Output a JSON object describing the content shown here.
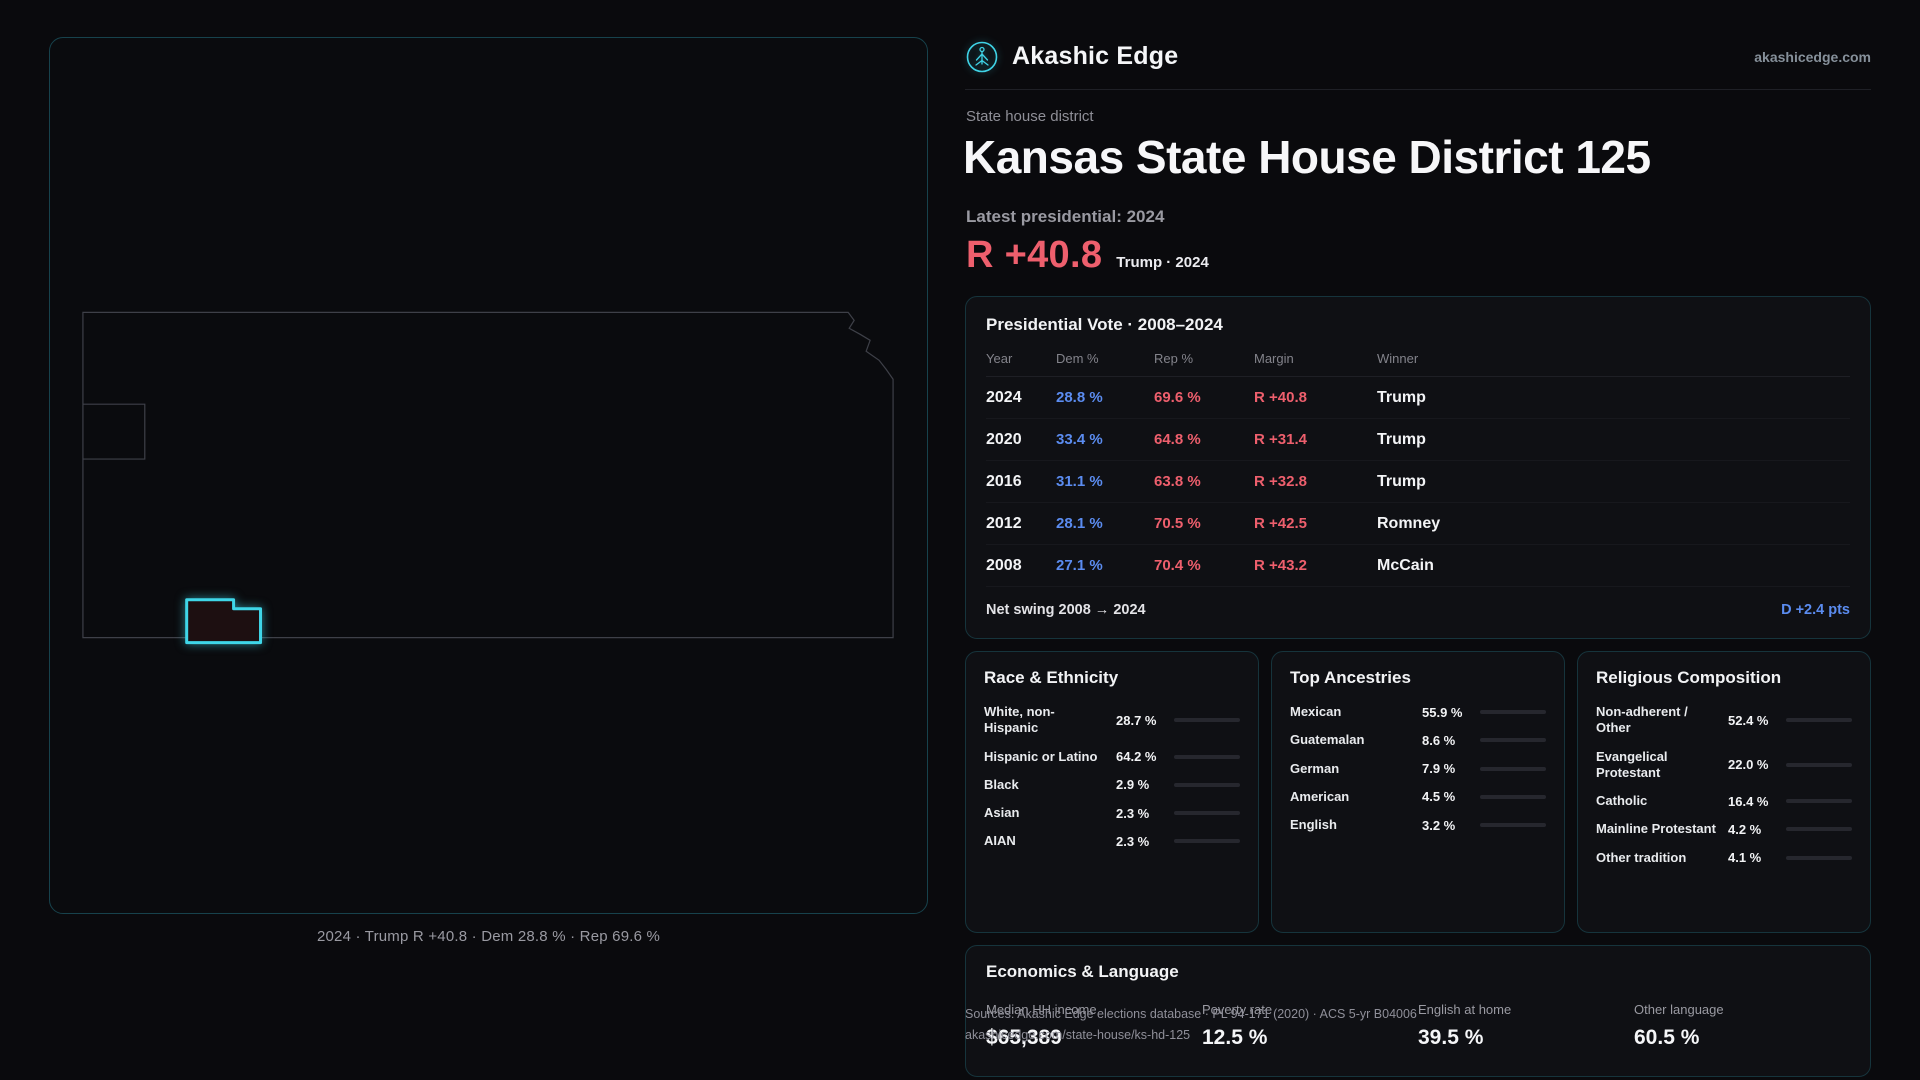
{
  "colors": {
    "bg": "#0a0a0d",
    "accent": "#3fd3e6",
    "dem": "#5b8cf0",
    "rep": "#ee5f6d"
  },
  "header": {
    "brand": "Akashic Edge",
    "domain": "akashicedge.com"
  },
  "hero": {
    "kicker": "State house district",
    "title": "Kansas State House District 125",
    "latest": "Latest presidential: 2024",
    "margin": "R +40.8",
    "margin_context": "Trump · 2024"
  },
  "map": {
    "caption": "2024 · Trump R +40.8 · Dem 28.8 % · Rep 69.6 %"
  },
  "presidential": {
    "title": "Presidential Vote · 2008–2024",
    "columns": [
      "Year",
      "Dem %",
      "Rep %",
      "Margin",
      "Winner"
    ],
    "rows": [
      {
        "year": "2024",
        "dem": "28.8 %",
        "rep": "69.6 %",
        "margin": "R +40.8",
        "winner": "Trump"
      },
      {
        "year": "2020",
        "dem": "33.4 %",
        "rep": "64.8 %",
        "margin": "R +31.4",
        "winner": "Trump"
      },
      {
        "year": "2016",
        "dem": "31.1 %",
        "rep": "63.8 %",
        "margin": "R +32.8",
        "winner": "Trump"
      },
      {
        "year": "2012",
        "dem": "28.1 %",
        "rep": "70.5 %",
        "margin": "R +42.5",
        "winner": "Romney"
      },
      {
        "year": "2008",
        "dem": "27.1 %",
        "rep": "70.4 %",
        "margin": "R +43.2",
        "winner": "McCain"
      }
    ],
    "net_swing_label": "Net swing 2008 → 2024",
    "net_swing_value": "D +2.4 pts"
  },
  "race": {
    "title": "Race & Ethnicity",
    "rows": [
      {
        "label": "White, non-Hispanic",
        "value": "28.7 %",
        "pct": 28.7,
        "color": "#8e939c"
      },
      {
        "label": "Hispanic or Latino",
        "value": "64.2 %",
        "pct": 64.2,
        "color": "#e0a33e"
      },
      {
        "label": "Black",
        "value": "2.9 %",
        "pct": 2.9,
        "color": "#5b8cf0"
      },
      {
        "label": "Asian",
        "value": "2.3 %",
        "pct": 2.3,
        "color": "#4fb97d"
      },
      {
        "label": "AIAN",
        "value": "2.3 %",
        "pct": 2.3,
        "color": "#de7a44"
      }
    ]
  },
  "ancestries": {
    "title": "Top Ancestries",
    "rows": [
      {
        "label": "Mexican",
        "value": "55.9 %",
        "pct": 55.9,
        "color": "#e0a33e"
      },
      {
        "label": "Guatemalan",
        "value": "8.6 %",
        "pct": 8.6,
        "color": "#e0a33e"
      },
      {
        "label": "German",
        "value": "7.9 %",
        "pct": 7.9,
        "color": "#8e939c"
      },
      {
        "label": "American",
        "value": "4.5 %",
        "pct": 4.5,
        "color": "#8e939c"
      },
      {
        "label": "English",
        "value": "3.2 %",
        "pct": 3.2,
        "color": "#8e939c"
      }
    ]
  },
  "religion": {
    "title": "Religious Composition",
    "rows": [
      {
        "label": "Non-adherent / Other",
        "value": "52.4 %",
        "pct": 52.4,
        "color": "#8e939c"
      },
      {
        "label": "Evangelical Protestant",
        "value": "22.0 %",
        "pct": 22.0,
        "color": "#e8697a"
      },
      {
        "label": "Catholic",
        "value": "16.4 %",
        "pct": 16.4,
        "color": "#ddc13c"
      },
      {
        "label": "Mainline Protestant",
        "value": "4.2 %",
        "pct": 4.2,
        "color": "#5b8cf0"
      },
      {
        "label": "Other tradition",
        "value": "4.1 %",
        "pct": 4.1,
        "color": "#8e939c"
      }
    ]
  },
  "economics": {
    "title": "Economics & Language",
    "stats": [
      {
        "label": "Median HH income",
        "value": "$65,389"
      },
      {
        "label": "Poverty rate",
        "value": "12.5 %"
      },
      {
        "label": "English at home",
        "value": "39.5 %"
      },
      {
        "label": "Other language",
        "value": "60.5 %"
      }
    ]
  },
  "footer": {
    "sources": "Sources: Akashic Edge elections database · PL 94-171 (2020) · ACS 5-yr B04006",
    "permalink": "akashicedge.com/state-house/ks-hd-125"
  }
}
